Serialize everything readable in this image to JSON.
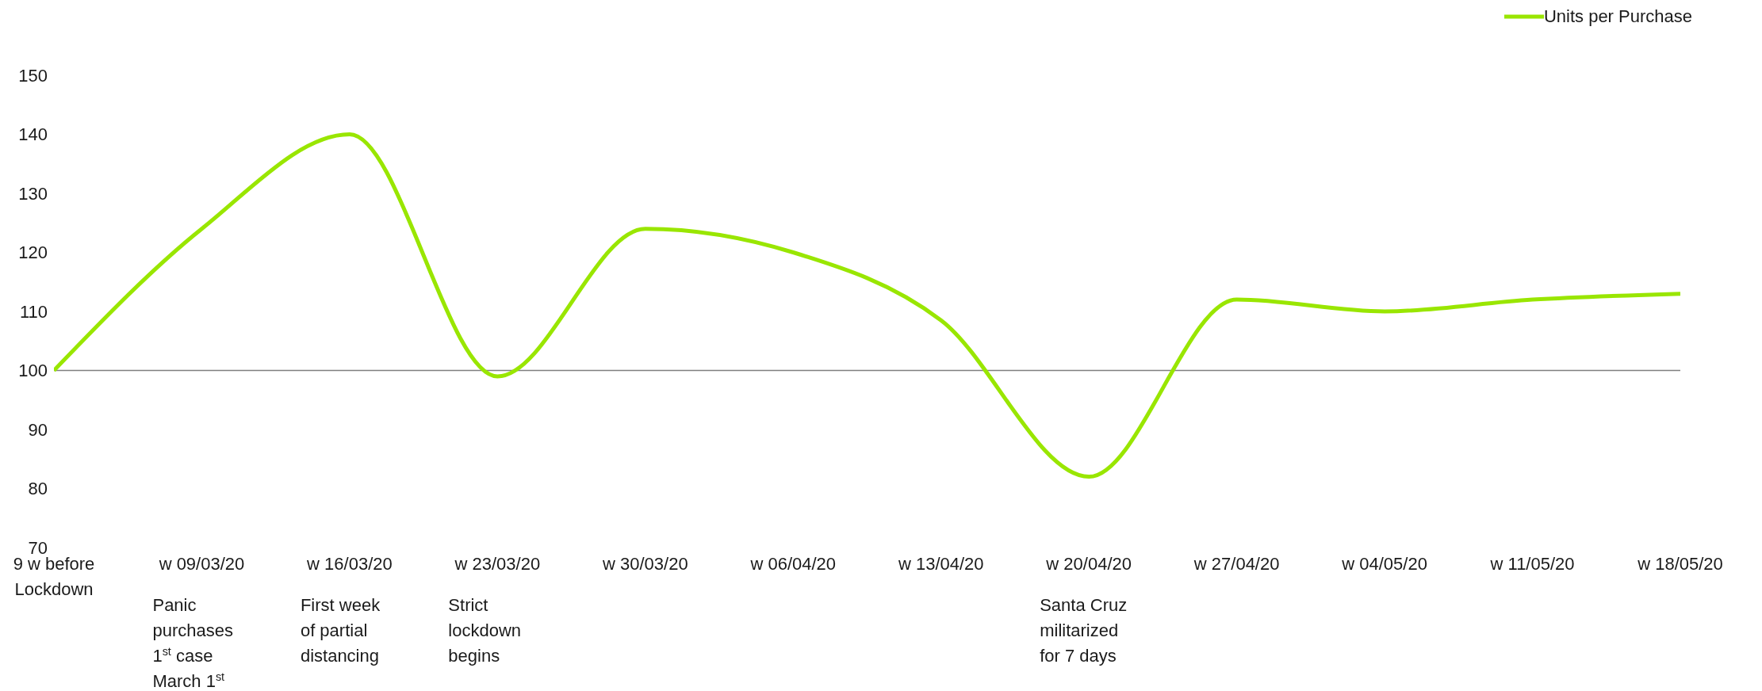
{
  "chart_data": {
    "type": "line",
    "categories": [
      "9 w before Lockdown",
      "w 09/03/20",
      "w 16/03/20",
      "w 23/03/20",
      "w 30/03/20",
      "w 06/04/20",
      "w 13/04/20",
      "w 20/04/20",
      "w 27/04/20",
      "w 04/05/20",
      "w 11/05/20",
      "w 18/05/20"
    ],
    "series": [
      {
        "name": "Units per Purchase",
        "color": "#99e600",
        "values": [
          100,
          124,
          140,
          99,
          124,
          120,
          108.5,
          82,
          112,
          110,
          112,
          113
        ]
      }
    ],
    "ylim": [
      70,
      150
    ],
    "yticks": [
      70,
      80,
      90,
      100,
      110,
      120,
      130,
      140,
      150
    ],
    "ref_lines": [
      {
        "axis": "y",
        "value": 100,
        "color": "#7f7f7f"
      }
    ],
    "annotations": [
      "Panic purchases 1$^{st}$ case March 1$^{st}$",
      "First week of partial distancing",
      "Strict lockdown begins",
      "Santa Cruz militarized for 7 days"
    ],
    "legend": "top right",
    "marker": "none",
    "line_style": "solid",
    "grid": false
  }
}
